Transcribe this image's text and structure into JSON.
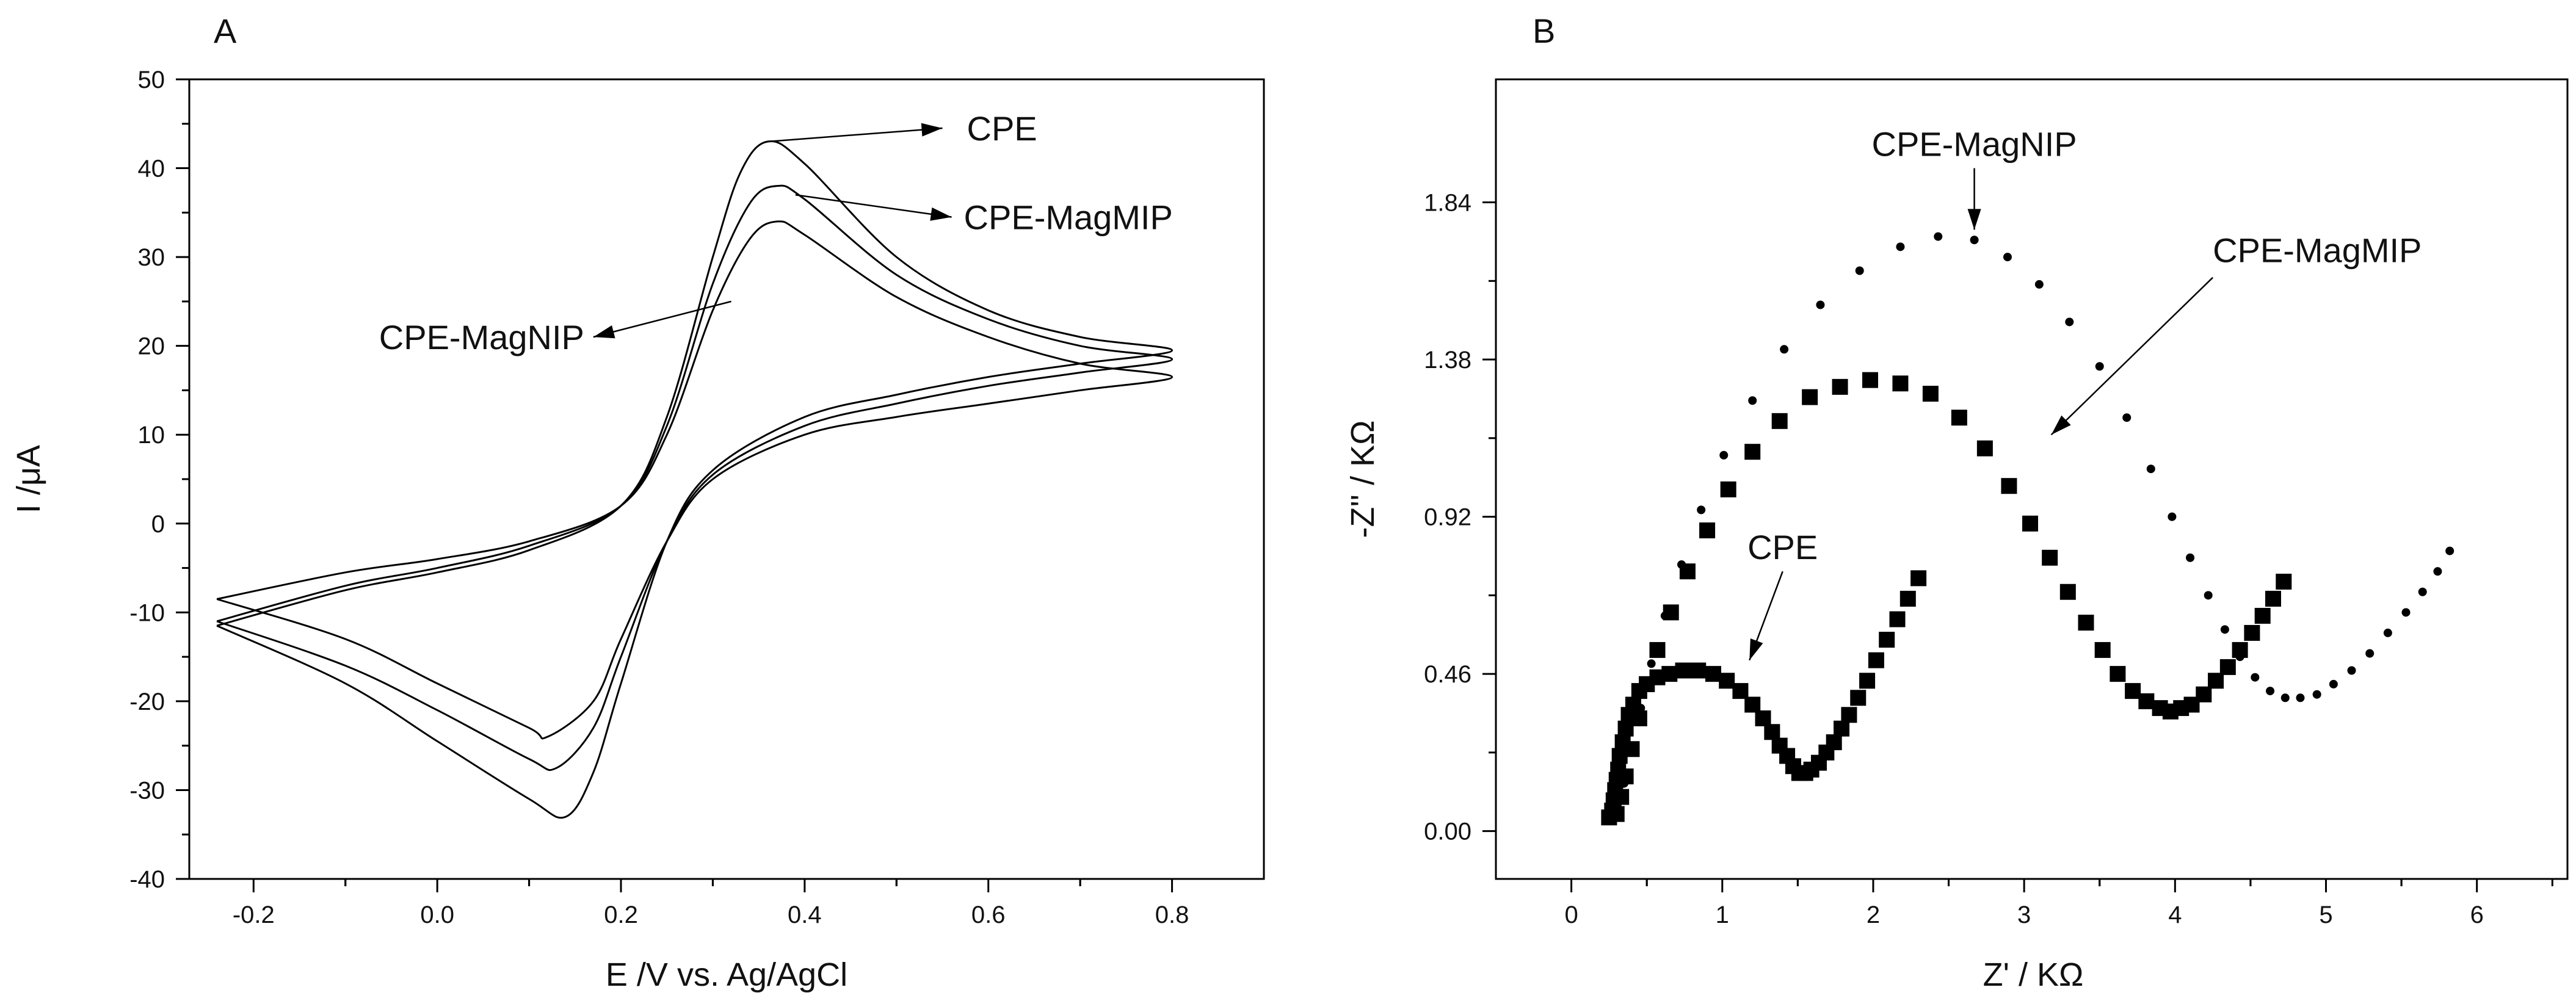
{
  "chart_data": [
    {
      "panel": "A",
      "type": "line",
      "title": "",
      "xlabel": "E /V vs. Ag/AgCl",
      "ylabel": "I /μA",
      "xlim": [
        -0.27,
        0.9
      ],
      "ylim": [
        -40,
        50
      ],
      "xticks": [
        -0.2,
        0.0,
        0.2,
        0.4,
        0.6,
        0.8
      ],
      "xtick_labels": [
        "-0.2",
        "0.0",
        "0.2",
        "0.4",
        "0.6",
        "0.8"
      ],
      "yticks": [
        -40,
        -30,
        -20,
        -10,
        0,
        10,
        20,
        30,
        40,
        50
      ],
      "ytick_labels": [
        "-40",
        "-30",
        "-20",
        "-10",
        "0",
        "10",
        "20",
        "30",
        "40",
        "50"
      ],
      "grid": false,
      "series": [
        {
          "name": "CPE",
          "x": [
            -0.24,
            -0.1,
            0.0,
            0.1,
            0.2,
            0.25,
            0.3,
            0.33,
            0.36,
            0.4,
            0.5,
            0.6,
            0.7,
            0.8,
            0.7,
            0.6,
            0.5,
            0.4,
            0.3,
            0.25,
            0.2,
            0.17,
            0.14,
            0.1,
            0.0,
            -0.1,
            -0.24
          ],
          "y": [
            -11.5,
            -7.5,
            -5.5,
            -3.0,
            2.0,
            12.0,
            30.0,
            39.5,
            43.0,
            40.5,
            30.0,
            24.0,
            21.0,
            19.5,
            18.0,
            16.5,
            14.5,
            12.0,
            6.0,
            -2.0,
            -18.0,
            -28.0,
            -33.0,
            -31.0,
            -24.5,
            -18.0,
            -11.5
          ]
        },
        {
          "name": "CPE-MagMIP",
          "x": [
            -0.24,
            -0.1,
            0.0,
            0.1,
            0.2,
            0.25,
            0.3,
            0.34,
            0.37,
            0.4,
            0.5,
            0.6,
            0.7,
            0.8,
            0.7,
            0.6,
            0.5,
            0.4,
            0.3,
            0.25,
            0.2,
            0.17,
            0.13,
            0.1,
            0.0,
            -0.1,
            -0.24
          ],
          "y": [
            -11.0,
            -7.0,
            -5.0,
            -2.5,
            2.0,
            11.0,
            27.0,
            36.0,
            38.0,
            36.5,
            28.0,
            23.0,
            20.0,
            18.5,
            17.0,
            15.5,
            13.5,
            11.0,
            5.5,
            -2.0,
            -15.0,
            -23.0,
            -27.5,
            -26.5,
            -21.0,
            -16.0,
            -11.0
          ]
        },
        {
          "name": "CPE-MagNIP",
          "x": [
            -0.24,
            -0.1,
            0.0,
            0.1,
            0.2,
            0.25,
            0.3,
            0.34,
            0.37,
            0.4,
            0.5,
            0.6,
            0.7,
            0.8,
            0.7,
            0.6,
            0.5,
            0.4,
            0.3,
            0.25,
            0.2,
            0.17,
            0.12,
            0.1,
            0.0,
            -0.1,
            -0.24
          ],
          "y": [
            -8.5,
            -5.5,
            -4.0,
            -2.0,
            2.0,
            10.0,
            24.0,
            32.0,
            34.0,
            32.5,
            25.5,
            21.0,
            18.0,
            16.5,
            15.0,
            13.5,
            12.0,
            10.0,
            5.0,
            -2.0,
            -13.0,
            -20.0,
            -24.0,
            -23.0,
            -18.0,
            -13.0,
            -8.5
          ]
        }
      ],
      "annotations": [
        {
          "text": "CPE",
          "arrow_from": [
            0.36,
            43.0
          ],
          "arrow_to": [
            0.55,
            44.5
          ]
        },
        {
          "text": "CPE-MagMIP",
          "arrow_from": [
            0.39,
            37.0
          ],
          "arrow_to": [
            0.56,
            34.5
          ]
        },
        {
          "text": "CPE-MagNIP",
          "arrow_from": [
            0.32,
            25.0
          ],
          "arrow_to": [
            0.17,
            21.0
          ]
        }
      ]
    },
    {
      "panel": "B",
      "type": "scatter",
      "title": "",
      "xlabel": "Z' / KΩ",
      "ylabel": "-Z'' / KΩ",
      "xlim": [
        -0.5,
        6.6
      ],
      "ylim": [
        -0.14,
        2.2
      ],
      "xticks": [
        0,
        1,
        2,
        3,
        4,
        5,
        6
      ],
      "xtick_labels": [
        "0",
        "1",
        "2",
        "3",
        "4",
        "5",
        "6"
      ],
      "yticks": [
        0.0,
        0.46,
        0.92,
        1.38,
        1.84
      ],
      "ytick_labels": [
        "0.00",
        "0.46",
        "0.92",
        "1.38",
        "1.84"
      ],
      "grid": false,
      "series": [
        {
          "name": "CPE",
          "marker": "square",
          "x": [
            0.25,
            0.27,
            0.28,
            0.29,
            0.3,
            0.31,
            0.32,
            0.34,
            0.36,
            0.38,
            0.41,
            0.45,
            0.5,
            0.57,
            0.65,
            0.74,
            0.84,
            0.94,
            1.03,
            1.12,
            1.2,
            1.27,
            1.33,
            1.38,
            1.43,
            1.47,
            1.51,
            1.55,
            1.59,
            1.64,
            1.69,
            1.74,
            1.79,
            1.84,
            1.9,
            1.96,
            2.02,
            2.09,
            2.16,
            2.23,
            2.3
          ],
          "y": [
            0.04,
            0.06,
            0.09,
            0.12,
            0.15,
            0.18,
            0.22,
            0.26,
            0.3,
            0.34,
            0.37,
            0.41,
            0.43,
            0.45,
            0.46,
            0.47,
            0.47,
            0.46,
            0.44,
            0.41,
            0.37,
            0.33,
            0.29,
            0.25,
            0.22,
            0.19,
            0.17,
            0.17,
            0.18,
            0.2,
            0.23,
            0.26,
            0.3,
            0.34,
            0.39,
            0.44,
            0.5,
            0.56,
            0.62,
            0.68,
            0.74
          ]
        },
        {
          "name": "CPE-MagMIP",
          "marker": "square",
          "x": [
            0.3,
            0.33,
            0.36,
            0.4,
            0.45,
            0.5,
            0.57,
            0.66,
            0.77,
            0.9,
            1.04,
            1.2,
            1.38,
            1.58,
            1.78,
            1.98,
            2.18,
            2.38,
            2.57,
            2.74,
            2.9,
            3.04,
            3.17,
            3.29,
            3.41,
            3.52,
            3.62,
            3.72,
            3.81,
            3.9,
            3.97,
            4.04,
            4.11,
            4.19,
            4.27,
            4.35,
            4.43,
            4.51,
            4.58,
            4.65,
            4.72
          ],
          "y": [
            0.05,
            0.1,
            0.16,
            0.24,
            0.33,
            0.43,
            0.53,
            0.64,
            0.76,
            0.88,
            1.0,
            1.11,
            1.2,
            1.27,
            1.3,
            1.32,
            1.31,
            1.28,
            1.21,
            1.12,
            1.01,
            0.9,
            0.8,
            0.7,
            0.61,
            0.53,
            0.46,
            0.41,
            0.38,
            0.36,
            0.35,
            0.36,
            0.37,
            0.4,
            0.44,
            0.48,
            0.53,
            0.58,
            0.63,
            0.68,
            0.73
          ]
        },
        {
          "name": "CPE-MagNIP",
          "marker": "dot",
          "x": [
            0.3,
            0.35,
            0.4,
            0.46,
            0.53,
            0.62,
            0.73,
            0.86,
            1.01,
            1.2,
            1.41,
            1.65,
            1.91,
            2.18,
            2.43,
            2.67,
            2.89,
            3.1,
            3.3,
            3.5,
            3.68,
            3.84,
            3.98,
            4.1,
            4.22,
            4.33,
            4.43,
            4.53,
            4.63,
            4.73,
            4.83,
            4.94,
            5.05,
            5.17,
            5.29,
            5.41,
            5.53,
            5.64,
            5.74,
            5.82
          ],
          "y": [
            0.06,
            0.14,
            0.24,
            0.36,
            0.49,
            0.63,
            0.78,
            0.94,
            1.1,
            1.26,
            1.41,
            1.54,
            1.64,
            1.71,
            1.74,
            1.73,
            1.68,
            1.6,
            1.49,
            1.36,
            1.21,
            1.06,
            0.92,
            0.8,
            0.69,
            0.59,
            0.51,
            0.45,
            0.41,
            0.39,
            0.39,
            0.4,
            0.43,
            0.47,
            0.52,
            0.58,
            0.64,
            0.7,
            0.76,
            0.82
          ]
        }
      ],
      "annotations": [
        {
          "text": "CPE",
          "arrow_from": [
            1.4,
            0.76
          ],
          "arrow_to": [
            1.18,
            0.5
          ]
        },
        {
          "text": "CPE-MagMIP",
          "arrow_from": [
            4.25,
            1.62
          ],
          "arrow_to": [
            3.18,
            1.16
          ]
        },
        {
          "text": "CPE-MagNIP",
          "arrow_from": [
            2.67,
            1.94
          ],
          "arrow_to": [
            2.67,
            1.76
          ]
        }
      ]
    }
  ],
  "panel_letters": [
    "A",
    "B"
  ]
}
